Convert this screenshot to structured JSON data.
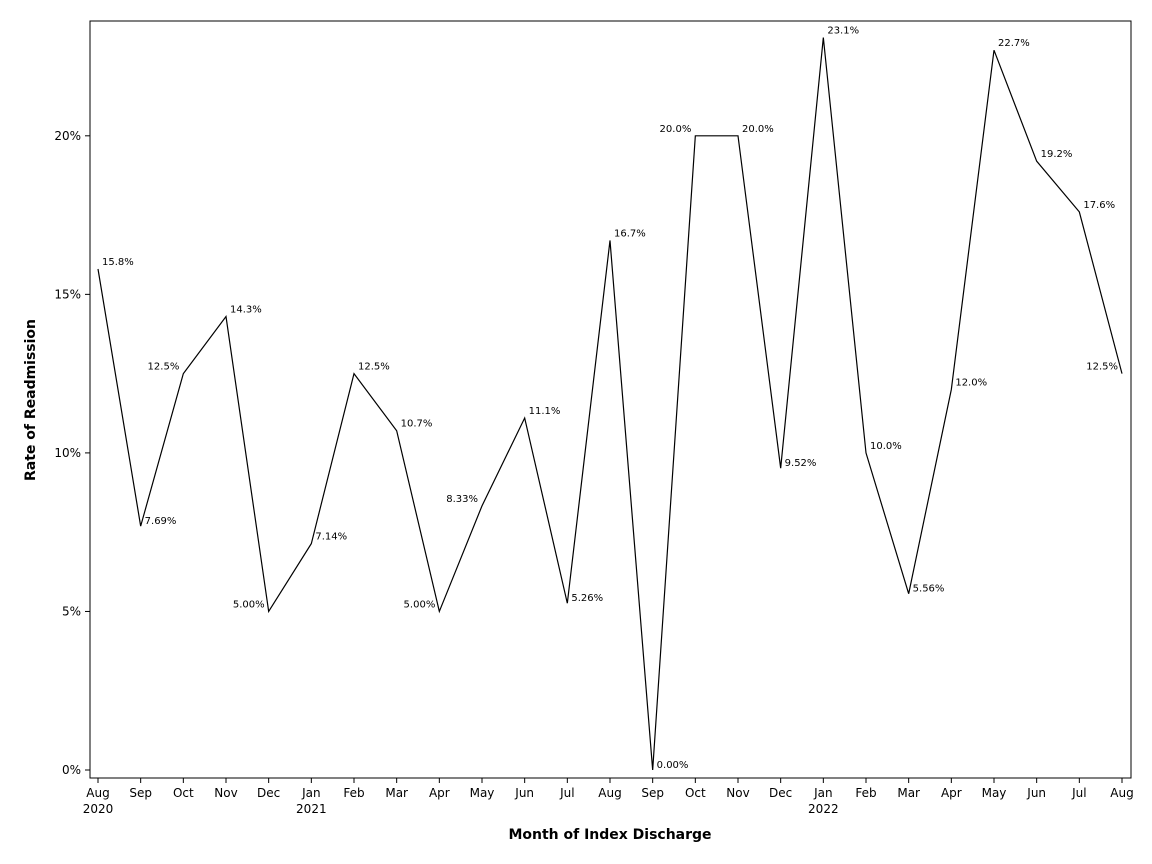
{
  "chart_data": {
    "type": "line",
    "xlabel": "Month of Index Discharge",
    "ylabel": "Rate of Readmission",
    "ylim": [
      0,
      23.4
    ],
    "y_ticks": [
      {
        "value": 0,
        "label": "0%"
      },
      {
        "value": 5,
        "label": "5%"
      },
      {
        "value": 10,
        "label": "10%"
      },
      {
        "value": 15,
        "label": "15%"
      },
      {
        "value": 20,
        "label": "20%"
      }
    ],
    "grid": false,
    "legend": "none",
    "line_color": "#000000",
    "points": [
      {
        "month": "Aug",
        "year": "2020",
        "value": 15.8,
        "label": "15.8%",
        "label_side": "right"
      },
      {
        "month": "Sep",
        "year": "",
        "value": 7.69,
        "label": "7.69%",
        "label_side": "right"
      },
      {
        "month": "Oct",
        "year": "",
        "value": 12.5,
        "label": "12.5%",
        "label_side": "left"
      },
      {
        "month": "Nov",
        "year": "",
        "value": 14.3,
        "label": "14.3%",
        "label_side": "right"
      },
      {
        "month": "Dec",
        "year": "",
        "value": 5.0,
        "label": "5.00%",
        "label_side": "left"
      },
      {
        "month": "Jan",
        "year": "2021",
        "value": 7.14,
        "label": "7.14%",
        "label_side": "right"
      },
      {
        "month": "Feb",
        "year": "",
        "value": 12.5,
        "label": "12.5%",
        "label_side": "right"
      },
      {
        "month": "Mar",
        "year": "",
        "value": 10.7,
        "label": "10.7%",
        "label_side": "right"
      },
      {
        "month": "Apr",
        "year": "",
        "value": 5.0,
        "label": "5.00%",
        "label_side": "left"
      },
      {
        "month": "May",
        "year": "",
        "value": 8.33,
        "label": "8.33%",
        "label_side": "left"
      },
      {
        "month": "Jun",
        "year": "",
        "value": 11.1,
        "label": "11.1%",
        "label_side": "right"
      },
      {
        "month": "Jul",
        "year": "",
        "value": 5.26,
        "label": "5.26%",
        "label_side": "right"
      },
      {
        "month": "Aug",
        "year": "",
        "value": 16.7,
        "label": "16.7%",
        "label_side": "right"
      },
      {
        "month": "Sep",
        "year": "",
        "value": 0.0,
        "label": "0.00%",
        "label_side": "right"
      },
      {
        "month": "Oct",
        "year": "",
        "value": 20.0,
        "label": "20.0%",
        "label_side": "left"
      },
      {
        "month": "Nov",
        "year": "",
        "value": 20.0,
        "label": "20.0%",
        "label_side": "right"
      },
      {
        "month": "Dec",
        "year": "",
        "value": 9.52,
        "label": "9.52%",
        "label_side": "right"
      },
      {
        "month": "Jan",
        "year": "2022",
        "value": 23.1,
        "label": "23.1%",
        "label_side": "right"
      },
      {
        "month": "Feb",
        "year": "",
        "value": 10.0,
        "label": "10.0%",
        "label_side": "right"
      },
      {
        "month": "Mar",
        "year": "",
        "value": 5.56,
        "label": "5.56%",
        "label_side": "right"
      },
      {
        "month": "Apr",
        "year": "",
        "value": 12.0,
        "label": "12.0%",
        "label_side": "right"
      },
      {
        "month": "May",
        "year": "",
        "value": 22.7,
        "label": "22.7%",
        "label_side": "right"
      },
      {
        "month": "Jun",
        "year": "",
        "value": 19.2,
        "label": "19.2%",
        "label_side": "right"
      },
      {
        "month": "Jul",
        "year": "",
        "value": 17.6,
        "label": "17.6%",
        "label_side": "right"
      },
      {
        "month": "Aug",
        "year": "",
        "value": 12.5,
        "label": "12.5%",
        "label_side": "left"
      }
    ]
  }
}
